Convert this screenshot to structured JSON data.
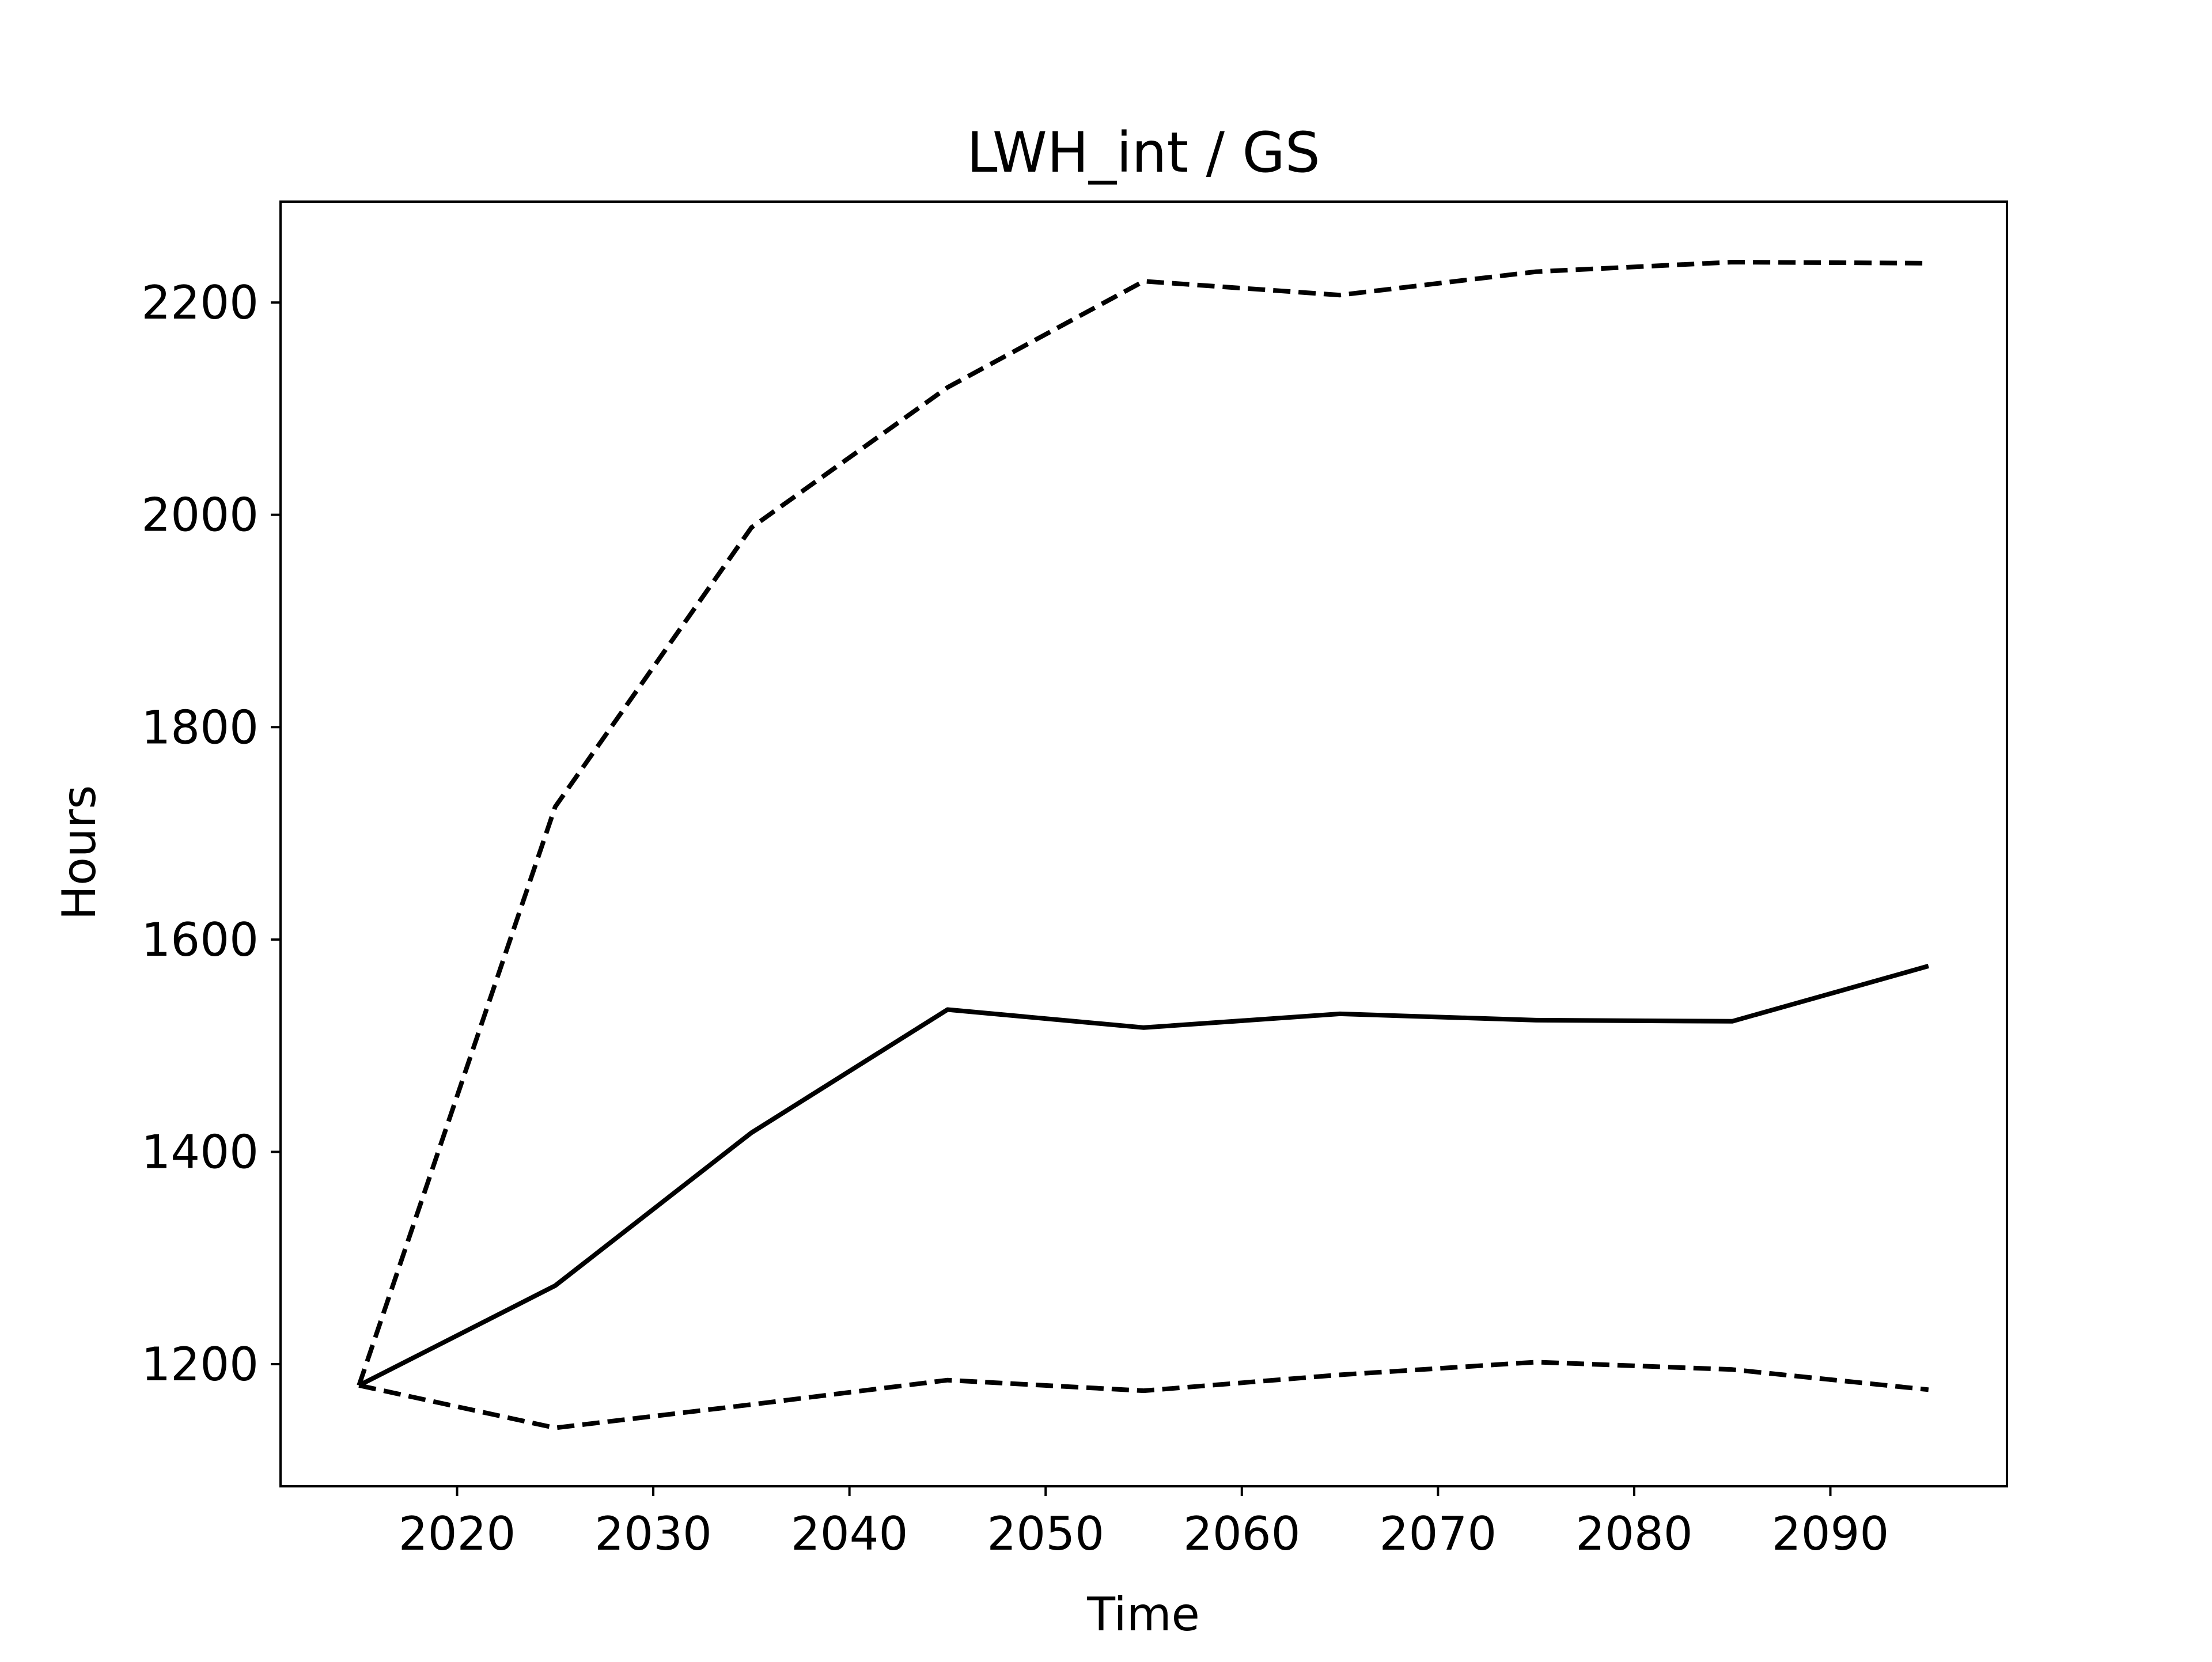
{
  "chart_data": {
    "type": "line",
    "title": "LWH_int / GS",
    "xlabel": "Time",
    "ylabel": "Hours",
    "xlim": [
      2011,
      2099
    ],
    "ylim": [
      1085,
      2295
    ],
    "xticks": [
      2020,
      2030,
      2040,
      2050,
      2060,
      2070,
      2080,
      2090
    ],
    "yticks": [
      1200,
      1400,
      1600,
      1800,
      2000,
      2200
    ],
    "x": [
      2015,
      2025,
      2035,
      2045,
      2055,
      2065,
      2075,
      2085,
      2095
    ],
    "series": [
      {
        "style": "solid",
        "values": [
          1180,
          1274,
          1418,
          1534,
          1517,
          1530,
          1524,
          1523,
          1575
        ]
      },
      {
        "style": "dashed",
        "values": [
          1180,
          1725,
          1988,
          2120,
          2220,
          2207,
          2229,
          2238,
          2237
        ]
      },
      {
        "style": "dashed",
        "values": [
          1180,
          1140,
          1162,
          1185,
          1175,
          1190,
          1202,
          1195,
          1176
        ]
      }
    ],
    "grid": false,
    "colors": {
      "line": "#000000",
      "frame": "#000000"
    }
  }
}
